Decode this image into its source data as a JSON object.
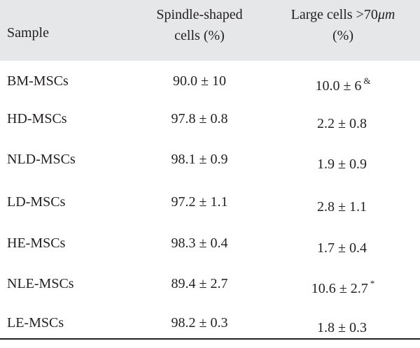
{
  "header": {
    "sample": "Sample",
    "spindle_line1": "Spindle-shaped",
    "spindle_line2": "cells (%)",
    "large_line1_pre": "Large cells >70",
    "large_line1_unit": "μm",
    "large_line2": "(%)"
  },
  "rows": [
    {
      "sample": "BM-MSCs",
      "spindle": "90.0 ± 10",
      "large": "10.0 ± 6",
      "mark": "&"
    },
    {
      "sample": "HD-MSCs",
      "spindle": "97.8 ± 0.8",
      "large": "2.2 ± 0.8",
      "mark": ""
    },
    {
      "sample": "NLD-MSCs",
      "spindle": "98.1 ± 0.9",
      "large": "1.9 ± 0.9",
      "mark": ""
    },
    {
      "sample": "LD-MSCs",
      "spindle": "97.2 ± 1.1",
      "large": "2.8 ± 1.1",
      "mark": ""
    },
    {
      "sample": "HE-MSCs",
      "spindle": "98.3 ± 0.4",
      "large": "1.7 ± 0.4",
      "mark": ""
    },
    {
      "sample": "NLE-MSCs",
      "spindle": "89.4 ± 2.7",
      "large": "10.6 ± 2.7",
      "mark": "*"
    },
    {
      "sample": "LE-MSCs",
      "spindle": "98.2 ± 0.3",
      "large": "1.8 ± 0.3",
      "mark": ""
    }
  ]
}
